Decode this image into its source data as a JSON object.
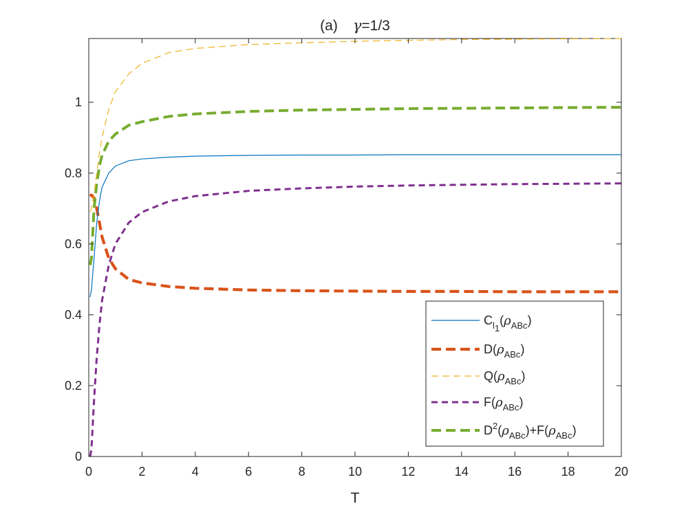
{
  "chart_data": {
    "type": "line",
    "title": {
      "prefix": "(a)",
      "gamma_symbol": "γ",
      "value": "=1/3"
    },
    "xlabel": "T",
    "ylabel": "",
    "xlim": [
      0,
      20
    ],
    "ylim": [
      0,
      1.18
    ],
    "xticks": [
      0,
      2,
      4,
      6,
      8,
      10,
      12,
      14,
      16,
      18,
      20
    ],
    "xtick_labels": [
      "0",
      "2",
      "4",
      "6",
      "8",
      "10",
      "12",
      "14",
      "16",
      "18",
      "20"
    ],
    "yticks": [
      0,
      0.2,
      0.4,
      0.6,
      0.8,
      1
    ],
    "ytick_labels": [
      "0",
      "0.2",
      "0.4",
      "0.6",
      "0.8",
      "1"
    ],
    "grid": false,
    "legend_position": "bottom-right",
    "x": [
      0.05,
      0.1,
      0.2,
      0.3,
      0.4,
      0.5,
      0.75,
      1,
      1.5,
      2,
      3,
      4,
      6,
      8,
      10,
      12,
      14,
      16,
      18,
      20
    ],
    "series": [
      {
        "name": "C_l1(ρ_ABc)",
        "legend": {
          "main": "C",
          "sub1": "l",
          "sub2": "1",
          "open": "(",
          "rho": "ρ",
          "sub": "ABc",
          "close": ")"
        },
        "color": "#0072BD",
        "style": "solid",
        "width": 1.2,
        "values": [
          0.45,
          0.47,
          0.56,
          0.66,
          0.72,
          0.76,
          0.8,
          0.82,
          0.835,
          0.84,
          0.845,
          0.848,
          0.85,
          0.851,
          0.851,
          0.852,
          0.852,
          0.852,
          0.852,
          0.852
        ]
      },
      {
        "name": "D(ρ_ABc)",
        "legend": {
          "main": "D",
          "open": "(",
          "rho": "ρ",
          "sub": "ABc",
          "close": ")"
        },
        "color": "#D95319",
        "style": "dashed",
        "width": 4.2,
        "values": [
          0.735,
          0.738,
          0.73,
          0.7,
          0.66,
          0.62,
          0.56,
          0.53,
          0.5,
          0.49,
          0.48,
          0.475,
          0.47,
          0.468,
          0.467,
          0.466,
          0.466,
          0.465,
          0.465,
          0.465
        ]
      },
      {
        "name": "Q(ρ_ABc)",
        "legend": {
          "main": "Q",
          "open": "(",
          "rho": "ρ",
          "sub": "ABc",
          "close": ")"
        },
        "color": "#EDB120",
        "style": "dashed",
        "width": 1.2,
        "values": [
          0.69,
          0.7,
          0.74,
          0.8,
          0.86,
          0.9,
          0.98,
          1.03,
          1.08,
          1.11,
          1.14,
          1.152,
          1.163,
          1.168,
          1.172,
          1.175,
          1.177,
          1.178,
          1.179,
          1.18
        ]
      },
      {
        "name": "F(ρ_ABc)",
        "legend": {
          "main": "F",
          "open": "(",
          "rho": "ρ",
          "sub": "ABc",
          "close": ")"
        },
        "color": "#7E2F8E",
        "style": "dashed",
        "width": 3,
        "values": [
          0.0,
          0.02,
          0.16,
          0.28,
          0.37,
          0.44,
          0.54,
          0.6,
          0.66,
          0.69,
          0.72,
          0.735,
          0.75,
          0.757,
          0.762,
          0.765,
          0.767,
          0.769,
          0.77,
          0.771
        ]
      },
      {
        "name": "D^2(ρ_ABc)+F(ρ_ABc)",
        "legend": {
          "main": "D",
          "sup": "2",
          "open": "(",
          "rho": "ρ",
          "sub": "ABc",
          "mid": ")+F(",
          "rho2": "ρ",
          "sub2": "ABc",
          "close": ")"
        },
        "color": "#77AC30",
        "style": "dashed",
        "width": 4,
        "values": [
          0.54,
          0.56,
          0.7,
          0.77,
          0.82,
          0.85,
          0.89,
          0.91,
          0.935,
          0.945,
          0.96,
          0.967,
          0.974,
          0.978,
          0.98,
          0.982,
          0.983,
          0.984,
          0.985,
          0.986
        ]
      }
    ]
  }
}
